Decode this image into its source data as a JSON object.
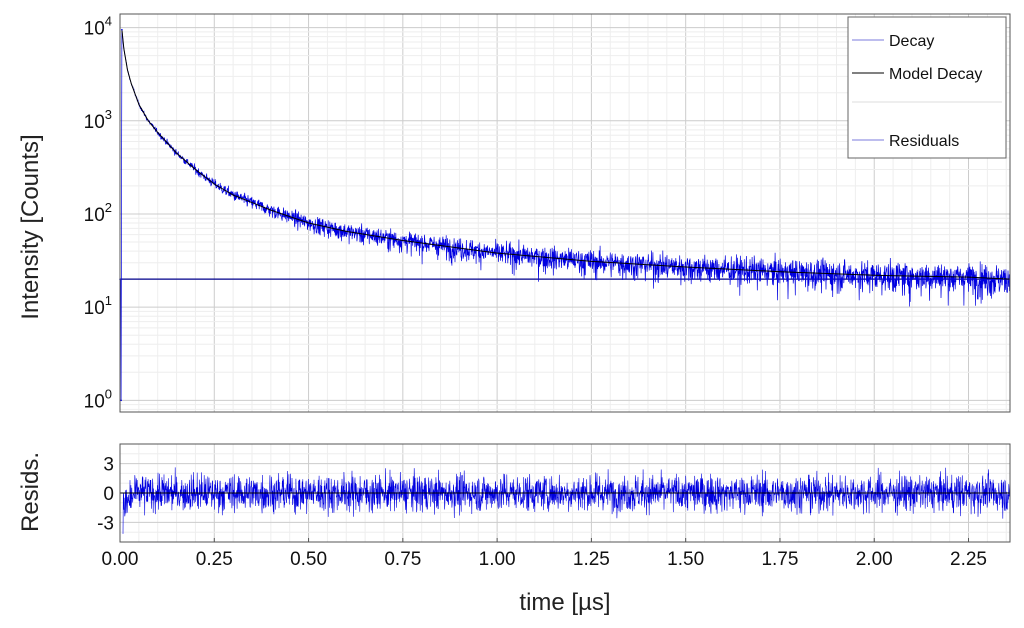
{
  "chart_data": [
    {
      "type": "line",
      "panel": "decay",
      "xlabel": "",
      "ylabel": "Intensity [Counts]",
      "yscale": "log",
      "xlim": [
        0,
        2.36
      ],
      "ylim": [
        0.75,
        14000
      ],
      "yticks": [
        {
          "base": "10",
          "exp": "0",
          "value": 1
        },
        {
          "base": "10",
          "exp": "1",
          "value": 10
        },
        {
          "base": "10",
          "exp": "2",
          "value": 100
        },
        {
          "base": "10",
          "exp": "3",
          "value": 1000
        },
        {
          "base": "10",
          "exp": "4",
          "value": 10000
        }
      ],
      "grid": true,
      "legend": {
        "placement": "top-right",
        "entries": [
          {
            "label": "Decay",
            "color": "#7b7bdc"
          },
          {
            "label": "Model Decay",
            "color": "#000000"
          },
          {
            "label": "Residuals",
            "color": "#7b7bdc"
          }
        ]
      },
      "series": [
        {
          "name": "Decay",
          "color": "#0000e0",
          "x": [
            0.0,
            0.002,
            0.003,
            0.005,
            0.01,
            0.02,
            0.03,
            0.05,
            0.075,
            0.1,
            0.15,
            0.2,
            0.25,
            0.3,
            0.4,
            0.5,
            0.6,
            0.75,
            1.0,
            1.25,
            1.5,
            1.75,
            2.0,
            2.25,
            2.36
          ],
          "y": [
            20,
            20,
            1,
            9500,
            6000,
            3500,
            2500,
            1500,
            1000,
            750,
            450,
            300,
            210,
            160,
            110,
            80,
            65,
            52,
            38,
            31,
            27,
            24,
            22,
            21,
            20
          ]
        },
        {
          "name": "Model Decay",
          "color": "#000000",
          "x": [
            0.005,
            0.01,
            0.02,
            0.03,
            0.05,
            0.075,
            0.1,
            0.15,
            0.2,
            0.25,
            0.3,
            0.4,
            0.5,
            0.6,
            0.75,
            1.0,
            1.25,
            1.5,
            1.75,
            2.0,
            2.25,
            2.36
          ],
          "y": [
            9500,
            6000,
            3500,
            2500,
            1500,
            1000,
            750,
            450,
            300,
            210,
            160,
            110,
            80,
            65,
            52,
            38,
            31,
            27,
            24,
            22,
            21,
            20
          ]
        },
        {
          "color": "#00008b",
          "x": [
            0.0,
            2.36
          ],
          "y": [
            20,
            20
          ]
        }
      ]
    },
    {
      "type": "line",
      "panel": "residuals",
      "xlabel": "time [µs]",
      "ylabel": "Resids.",
      "xlim": [
        0,
        2.36
      ],
      "ylim": [
        -5,
        5
      ],
      "xticks": [
        "0.00",
        "0.25",
        "0.50",
        "0.75",
        "1.00",
        "1.25",
        "1.50",
        "1.75",
        "2.00",
        "2.25"
      ],
      "yticks": [
        "-3",
        "0",
        "3"
      ],
      "grid": true,
      "series": [
        {
          "name": "Residuals",
          "color": "#0000e0",
          "zero_line_color": "#000000"
        }
      ]
    }
  ]
}
